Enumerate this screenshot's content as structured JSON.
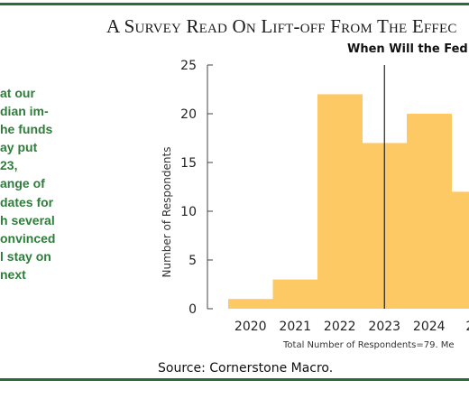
{
  "title": "A Survey Read On Lift-off From The Effec",
  "subtitle": "When Will the Fed",
  "sidebar_lines": [
    "at our",
    "dian im-",
    "he funds",
    "ay put",
    "23,",
    "ange of",
    "dates for",
    "h several",
    "onvinced",
    "l stay on",
    "next"
  ],
  "footnote": "Total Number of Respondents=79. Me",
  "source": "Source: Cornerstone Macro.",
  "colors": {
    "bar": "#fdc965",
    "accent_green": "#2e7d3a",
    "rule_green": "#2e6b3a",
    "marker_line": "#222222"
  },
  "chart_data": {
    "type": "bar",
    "title": "When Will the Fed",
    "xlabel": "",
    "ylabel": "Number of Respondents",
    "ylim": [
      0,
      25
    ],
    "yticks": [
      0,
      5,
      10,
      15,
      20,
      25
    ],
    "x_tick_labels": [
      "2020",
      "2021",
      "2022",
      "2023",
      "2024",
      "20"
    ],
    "bins": [
      {
        "start": 2019.5,
        "end": 2020.5,
        "value": 1
      },
      {
        "start": 2020.5,
        "end": 2021.5,
        "value": 3
      },
      {
        "start": 2021.5,
        "end": 2022.5,
        "value": 22
      },
      {
        "start": 2022.5,
        "end": 2023.5,
        "value": 17
      },
      {
        "start": 2023.5,
        "end": 2024.5,
        "value": 20
      },
      {
        "start": 2024.5,
        "end": 2025.5,
        "value": 12
      }
    ],
    "reference_line_x": 2023,
    "grid": false,
    "legend": "none"
  }
}
